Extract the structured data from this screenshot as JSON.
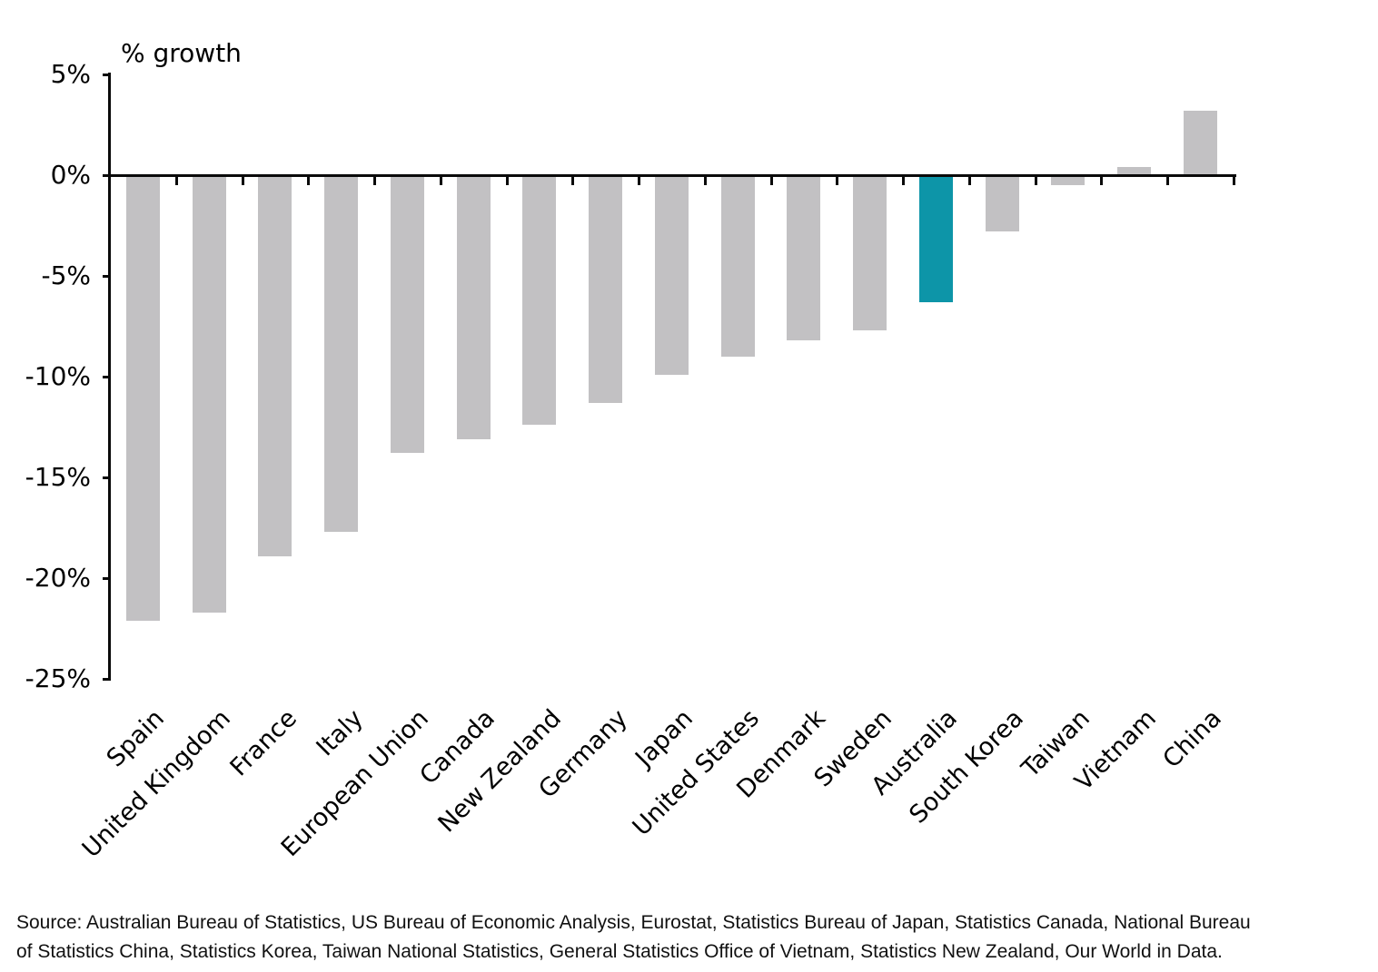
{
  "chart_data": {
    "type": "bar",
    "title": "% growth",
    "categories": [
      "Spain",
      "United Kingdom",
      "France",
      "Italy",
      "European Union",
      "Canada",
      "New Zealand",
      "Germany",
      "Japan",
      "United States",
      "Denmark",
      "Sweden",
      "Australia",
      "South Korea",
      "Taiwan",
      "Vietnam",
      "China"
    ],
    "values": [
      -22.1,
      -21.7,
      -18.9,
      -17.7,
      -13.8,
      -13.1,
      -12.4,
      -11.3,
      -9.9,
      -9.0,
      -8.2,
      -7.7,
      -6.3,
      -2.8,
      -0.5,
      0.4,
      3.2
    ],
    "highlight_index": 12,
    "highlight_category": "Australia",
    "bar_color": "#c2c1c3",
    "highlight_color": "#0d95a8",
    "axis_color": "#0a0a0a",
    "ylim": [
      -25,
      5
    ],
    "yticks": [
      5,
      0,
      -5,
      -10,
      -15,
      -20,
      -25
    ],
    "ytick_labels": [
      "5%",
      "0%",
      "-5%",
      "-10%",
      "-15%",
      "-20%",
      "-25%"
    ],
    "xlabel": "",
    "ylabel": "% growth",
    "grid": false,
    "legend": false
  },
  "source": {
    "lines": [
      "Source: Australian Bureau of Statistics, US Bureau of Economic Analysis, Eurostat, Statistics Bureau of Japan, Statistics Canada, National Bureau",
      "of Statistics China, Statistics Korea, Taiwan National Statistics, General Statistics Office of Vietnam, Statistics New Zealand, Our World in Data."
    ]
  }
}
